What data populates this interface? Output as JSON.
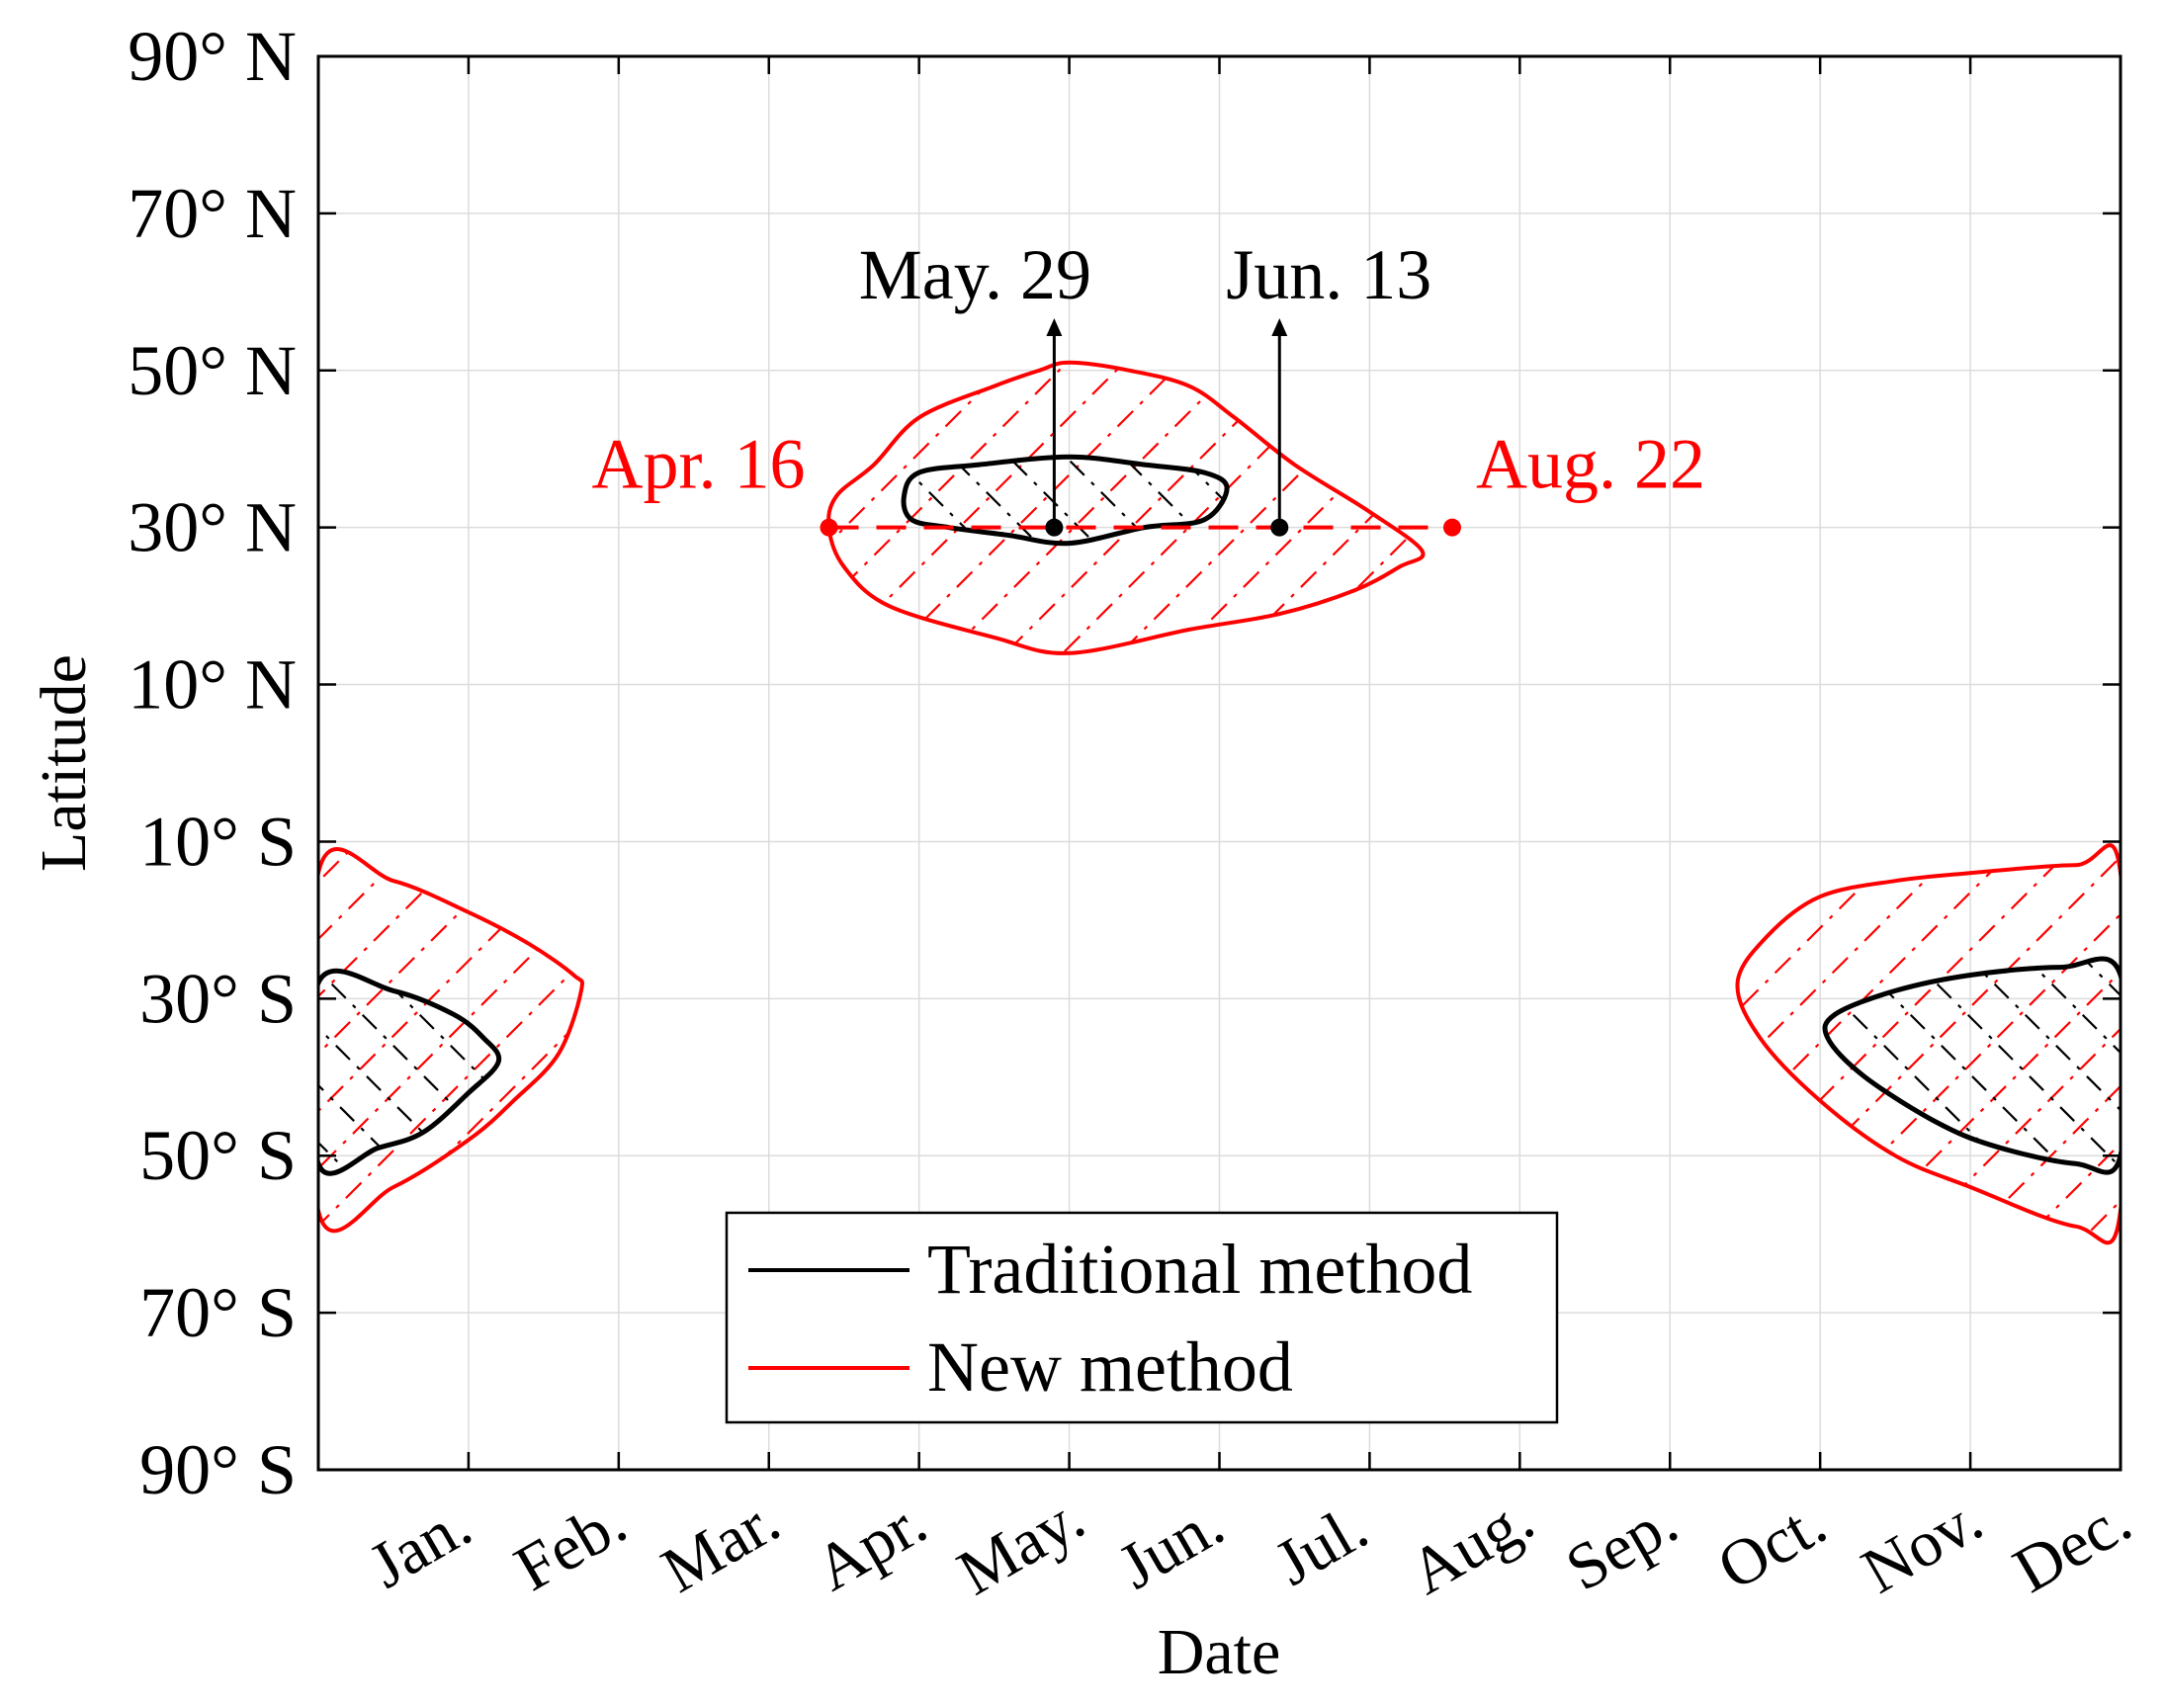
{
  "chart_data": {
    "type": "area",
    "title": "",
    "xlabel": "Date",
    "ylabel": "Latitude",
    "x_unit": "month",
    "xlim": [
      1,
      13
    ],
    "ylim": [
      -90,
      90
    ],
    "x_tick_labels": [
      "Jan.",
      "Feb.",
      "Mar.",
      "Apr.",
      "May.",
      "Jun.",
      "Jul.",
      "Aug.",
      "Sep.",
      "Oct.",
      "Nov.",
      "Dec."
    ],
    "y_ticks": [
      90,
      70,
      50,
      30,
      10,
      -10,
      -30,
      -50,
      -70,
      -90
    ],
    "y_tick_labels": [
      "90° N",
      "70° N",
      "50° N",
      "30° N",
      "10° N",
      "10° S",
      "30° S",
      "50° S",
      "70° S",
      "90° S"
    ],
    "grid": true,
    "legend": {
      "position": "bottom-center",
      "entries": [
        {
          "label": "Traditional method",
          "color": "#000000"
        },
        {
          "label": "New method",
          "color": "#ff0000"
        }
      ]
    },
    "series": [
      {
        "name": "New method",
        "color": "#ff0000",
        "regions": [
          [
            [
              4.4,
              30
            ],
            [
              4.45,
              34
            ],
            [
              4.7,
              38
            ],
            [
              5.0,
              44
            ],
            [
              5.5,
              48
            ],
            [
              5.8,
              50
            ],
            [
              6.0,
              51
            ],
            [
              6.4,
              50
            ],
            [
              6.8,
              48
            ],
            [
              7.1,
              44
            ],
            [
              7.5,
              38
            ],
            [
              8.0,
              32
            ],
            [
              8.35,
              27
            ],
            [
              8.2,
              25
            ],
            [
              7.9,
              22
            ],
            [
              7.4,
              19
            ],
            [
              6.8,
              17
            ],
            [
              6.0,
              14
            ],
            [
              5.5,
              16
            ],
            [
              4.8,
              20
            ],
            [
              4.5,
              25
            ]
          ],
          [
            [
              1.0,
              -14
            ],
            [
              1.5,
              -15
            ],
            [
              2.0,
              -19
            ],
            [
              2.4,
              -23
            ],
            [
              2.7,
              -27
            ],
            [
              2.75,
              -29
            ],
            [
              2.6,
              -37
            ],
            [
              2.3,
              -43
            ],
            [
              2.0,
              -48
            ],
            [
              1.5,
              -54
            ],
            [
              1.0,
              -57
            ]
          ],
          [
            [
              13.0,
              -14
            ],
            [
              12.7,
              -13
            ],
            [
              12.0,
              -14
            ],
            [
              11.5,
              -15
            ],
            [
              11.0,
              -17
            ],
            [
              10.65,
              -22
            ],
            [
              10.45,
              -28
            ],
            [
              10.6,
              -35
            ],
            [
              11.0,
              -43
            ],
            [
              11.5,
              -50
            ],
            [
              12.0,
              -54
            ],
            [
              12.7,
              -59
            ],
            [
              13.0,
              -57
            ]
          ]
        ]
      },
      {
        "name": "Traditional method",
        "color": "#000000",
        "regions": [
          [
            [
              4.9,
              34
            ],
            [
              5.0,
              37
            ],
            [
              5.4,
              38
            ],
            [
              6.0,
              39
            ],
            [
              6.5,
              38
            ],
            [
              6.9,
              37
            ],
            [
              7.05,
              35
            ],
            [
              6.9,
              31
            ],
            [
              6.5,
              30
            ],
            [
              6.0,
              28
            ],
            [
              5.6,
              29
            ],
            [
              5.2,
              30
            ],
            [
              4.95,
              31
            ]
          ],
          [
            [
              1.0,
              -28
            ],
            [
              1.5,
              -29
            ],
            [
              1.9,
              -32
            ],
            [
              2.1,
              -35
            ],
            [
              2.2,
              -38
            ],
            [
              2.0,
              -42
            ],
            [
              1.7,
              -47
            ],
            [
              1.4,
              -49
            ],
            [
              1.0,
              -51
            ]
          ],
          [
            [
              13.0,
              -27
            ],
            [
              12.6,
              -26
            ],
            [
              12.0,
              -27
            ],
            [
              11.5,
              -29
            ],
            [
              11.1,
              -32
            ],
            [
              11.05,
              -35
            ],
            [
              11.3,
              -40
            ],
            [
              11.8,
              -46
            ],
            [
              12.2,
              -49
            ],
            [
              12.7,
              -51
            ],
            [
              13.0,
              -50
            ]
          ]
        ]
      }
    ],
    "annotations": [
      {
        "text": "Apr. 16",
        "x": 4.4,
        "y": 30,
        "color": "#ff0000",
        "marker": "dot"
      },
      {
        "text": "Aug. 22",
        "x": 8.55,
        "y": 30,
        "color": "#ff0000",
        "marker": "dot"
      },
      {
        "text": "May. 29",
        "x": 5.9,
        "y": 30,
        "color": "#000000",
        "marker": "dot-arrow-up"
      },
      {
        "text": "Jun. 13",
        "x": 7.4,
        "y": 30,
        "color": "#000000",
        "marker": "dot-arrow-up"
      }
    ],
    "reference_line": {
      "y": 30,
      "from_x": 4.4,
      "to_x": 8.55,
      "style": "dashed",
      "color": "#ff0000"
    }
  }
}
